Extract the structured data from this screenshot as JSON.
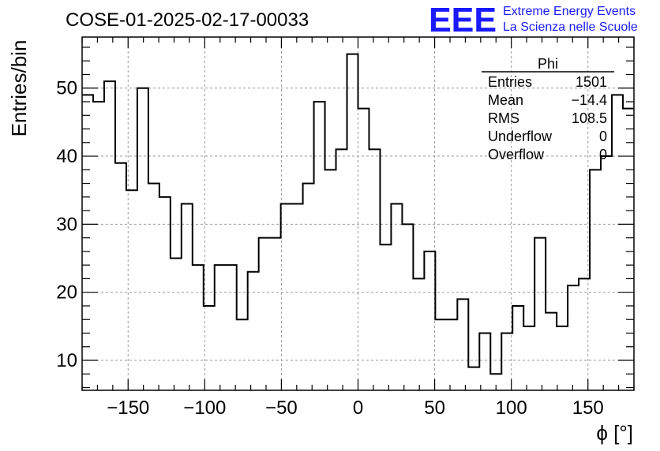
{
  "chart_data": {
    "type": "histogram",
    "title": "COSE-01-2025-02-17-00033",
    "xlabel": "ϕ [°]",
    "ylabel": "Entries/bin",
    "xlim": [
      -180,
      180
    ],
    "ylim": [
      5.6,
      57.5
    ],
    "grid": true,
    "bin_width": 7.2,
    "bin_edges_start": -180,
    "values": [
      49,
      48,
      51,
      39,
      35,
      50,
      36,
      34,
      25,
      33,
      24,
      18,
      24,
      24,
      16,
      23,
      28,
      28,
      33,
      33,
      36,
      48,
      38,
      41,
      55,
      47,
      41,
      27,
      33,
      30,
      22,
      26,
      16,
      16,
      19,
      9,
      14,
      8,
      14,
      18,
      15,
      28,
      17,
      15,
      21,
      22,
      38,
      40,
      49,
      47
    ],
    "x_ticks": [
      -150,
      -100,
      -50,
      0,
      50,
      100,
      150
    ],
    "x_tick_labels": [
      "−150",
      "−100",
      "−50",
      "0",
      "50",
      "100",
      "150"
    ],
    "y_ticks": [
      10,
      20,
      30,
      40,
      50
    ],
    "y_tick_labels": [
      "10",
      "20",
      "30",
      "40",
      "50"
    ],
    "stats_box": {
      "title": "Phi",
      "rows": [
        {
          "label": "Entries",
          "value": "1501"
        },
        {
          "label": "Mean",
          "value": "−14.4"
        },
        {
          "label": "RMS",
          "value": "108.5"
        },
        {
          "label": "Underflow",
          "value": "0"
        },
        {
          "label": "Overflow",
          "value": "0"
        }
      ]
    }
  },
  "logo": {
    "mark": "EEE",
    "line1": "Extreme Energy Events",
    "line2": "La Scienza nelle Scuole"
  },
  "colors": {
    "line": "#000000",
    "grid": "#999999",
    "logo": "#1a1aff"
  }
}
